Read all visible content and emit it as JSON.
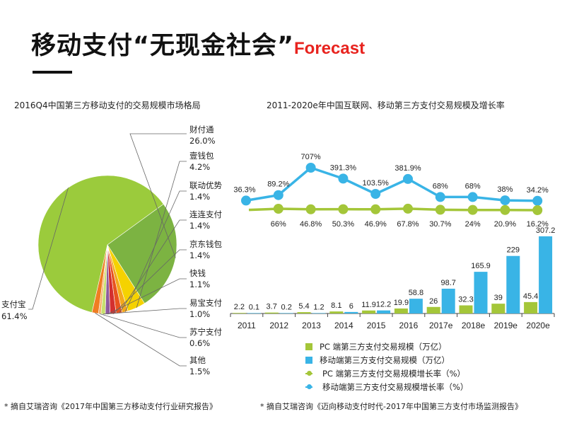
{
  "header": {
    "title_cn": "移动支付“无现金社会”",
    "title_en": "Forecast"
  },
  "colors": {
    "green": "#a4c639",
    "pie_green": "#9bcb3c",
    "blue": "#39b4e6",
    "caifu": "#7cb342"
  },
  "chart_data": [
    {
      "type": "pie",
      "title": "2016Q4中国第三方移动支付的交易规模市场格局",
      "slices": [
        {
          "name": "支付宝",
          "value": 61.4,
          "label": "61.4%",
          "color": "#9bcb3c"
        },
        {
          "name": "财付通",
          "value": 26.0,
          "label": "26.0%",
          "color": "#7cb342"
        },
        {
          "name": "壹钱包",
          "value": 4.2,
          "label": "4.2%",
          "color": "#f5d200"
        },
        {
          "name": "联动优势",
          "value": 1.4,
          "label": "1.4%",
          "color": "#f4a71c"
        },
        {
          "name": "连连支付",
          "value": 1.4,
          "label": "1.4%",
          "color": "#e8531f"
        },
        {
          "name": "京东钱包",
          "value": 1.4,
          "label": "1.4%",
          "color": "#d32f2f"
        },
        {
          "name": "快钱",
          "value": 1.1,
          "label": "1.1%",
          "color": "#8e5a9e"
        },
        {
          "name": "易宝支付",
          "value": 1.0,
          "label": "1.0%",
          "color": "#c7e06e"
        },
        {
          "name": "苏宁支付",
          "value": 0.6,
          "label": "0.6%",
          "color": "#f6b26b"
        },
        {
          "name": "其他",
          "value": 1.5,
          "label": "1.5%",
          "color": "#ef7d22"
        }
      ]
    },
    {
      "type": "bar+line",
      "title": "2011-2020e年中国互联网、移动第三方支付交易规模及增长率",
      "categories": [
        "2011",
        "2012",
        "2013",
        "2014",
        "2015",
        "2016",
        "2017e",
        "2018e",
        "2019e",
        "2020e"
      ],
      "series": [
        {
          "name": "PC 端第三方支付交易规模（万亿）",
          "kind": "bar",
          "color": "#a4c639",
          "values": [
            2.2,
            3.7,
            5.4,
            8.1,
            11.9,
            19.9,
            26,
            32.3,
            39,
            45.4
          ],
          "labels": [
            "2.2",
            "3.7",
            "5.4",
            "8.1",
            "11.9",
            "19.9",
            "26",
            "32.3",
            "39",
            "45.4"
          ]
        },
        {
          "name": "移动端第三方支付交易规模（万亿）",
          "kind": "bar",
          "color": "#39b4e6",
          "values": [
            0.1,
            0.2,
            1.2,
            6,
            12.2,
            58.8,
            98.7,
            165.9,
            229,
            307.2
          ],
          "labels": [
            "0.1",
            "0.2",
            "1.2",
            "6",
            "12.2",
            "58.8",
            "98.7",
            "165.9",
            "229",
            "307.2"
          ]
        },
        {
          "name": "PC 端第三方支付交易规模增长率（%）",
          "kind": "line",
          "color": "#a4c639",
          "values": [
            null,
            66,
            46.8,
            50.3,
            46.9,
            67.8,
            30.7,
            24,
            20.9,
            16.2
          ],
          "labels": [
            "",
            "66%",
            "46.8%",
            "50.3%",
            "46.9%",
            "67.8%",
            "30.7%",
            "24%",
            "20.9%",
            "16.2%"
          ]
        },
        {
          "name": "移动端第三方支付交易规模增长率（%）",
          "kind": "line",
          "color": "#39b4e6",
          "values": [
            36.3,
            89.2,
            707,
            391.3,
            103.5,
            381.9,
            68,
            68,
            38,
            34.2
          ],
          "labels": [
            "36.3%",
            "89.2%",
            "707%",
            "391.3%",
            "103.5%",
            "381.9%",
            "68%",
            "68%",
            "38%",
            "34.2%"
          ]
        }
      ]
    }
  ],
  "footnotes": {
    "left": "* 摘自艾瑞咨询《2017年中国第三方移动支付行业研究报告》",
    "right": "* 摘自艾瑞咨询《迈向移动支付时代-2017年中国第三方支付市场监测报告》"
  }
}
